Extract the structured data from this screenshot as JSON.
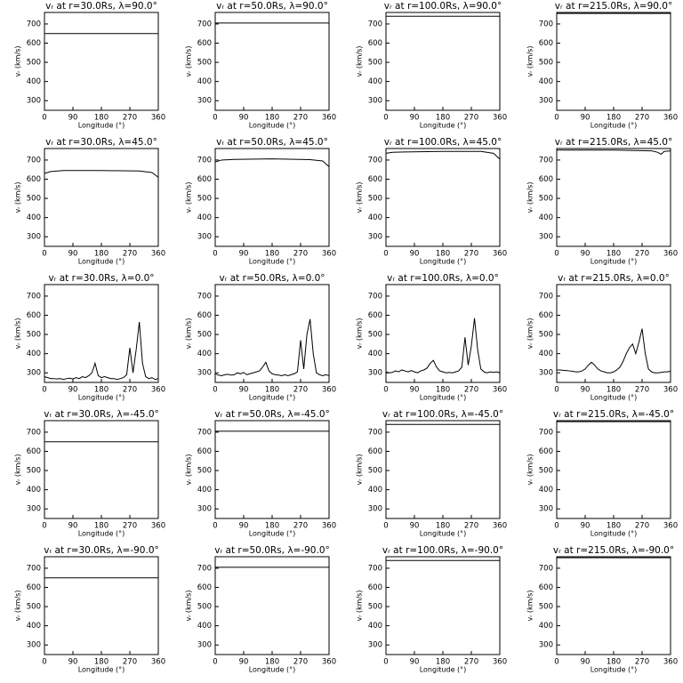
{
  "chart_data": [
    {
      "type": "line",
      "title": "vᵣ at r=30.0Rs, λ=90.0°",
      "xlabel": "Longitude (°)",
      "ylabel": "vᵣ (km/s)",
      "x": [
        0,
        360
      ],
      "series": [
        {
          "color": "#000000",
          "values": [
            650,
            650
          ]
        }
      ],
      "xlim": [
        0,
        360
      ],
      "ylim": [
        250,
        760
      ],
      "xticks": [
        0,
        90,
        180,
        270,
        360
      ],
      "yticks": [
        300,
        400,
        500,
        600,
        700
      ]
    },
    {
      "type": "line",
      "title": "vᵣ at r=50.0Rs, λ=90.0°",
      "xlabel": "Longitude (°)",
      "ylabel": "vᵣ (km/s)",
      "x": [
        0,
        360
      ],
      "series": [
        {
          "color": "#000000",
          "values": [
            705,
            705
          ]
        }
      ],
      "xlim": [
        0,
        360
      ],
      "ylim": [
        250,
        760
      ],
      "xticks": [
        0,
        90,
        180,
        270,
        360
      ],
      "yticks": [
        300,
        400,
        500,
        600,
        700
      ]
    },
    {
      "type": "line",
      "title": "vᵣ at r=100.0Rs, λ=90.0°",
      "xlabel": "Longitude (°)",
      "ylabel": "vᵣ (km/s)",
      "x": [
        0,
        360
      ],
      "series": [
        {
          "color": "#000000",
          "values": [
            740,
            740
          ]
        }
      ],
      "xlim": [
        0,
        360
      ],
      "ylim": [
        250,
        760
      ],
      "xticks": [
        0,
        90,
        180,
        270,
        360
      ],
      "yticks": [
        300,
        400,
        500,
        600,
        700
      ]
    },
    {
      "type": "line",
      "title": "vᵣ at r=215.0Rs, λ=90.0°",
      "xlabel": "Longitude (°)",
      "ylabel": "vᵣ (km/s)",
      "x": [
        0,
        360
      ],
      "series": [
        {
          "color": "#000000",
          "values": [
            755,
            755
          ]
        }
      ],
      "xlim": [
        0,
        360
      ],
      "ylim": [
        250,
        760
      ],
      "xticks": [
        0,
        90,
        180,
        270,
        360
      ],
      "yticks": [
        300,
        400,
        500,
        600,
        700
      ]
    },
    {
      "type": "line",
      "title": "vᵣ at r=30.0Rs, λ=45.0°",
      "xlabel": "Longitude (°)",
      "ylabel": "vᵣ (km/s)",
      "x": [
        0,
        20,
        60,
        180,
        300,
        340,
        360
      ],
      "series": [
        {
          "color": "#000000",
          "values": [
            630,
            640,
            645,
            645,
            643,
            635,
            610
          ]
        }
      ],
      "xlim": [
        0,
        360
      ],
      "ylim": [
        250,
        760
      ],
      "xticks": [
        0,
        90,
        180,
        270,
        360
      ],
      "yticks": [
        300,
        400,
        500,
        600,
        700
      ]
    },
    {
      "type": "line",
      "title": "vᵣ at r=50.0Rs, λ=45.0°",
      "xlabel": "Longitude (°)",
      "ylabel": "vᵣ (km/s)",
      "x": [
        0,
        20,
        60,
        180,
        300,
        340,
        360
      ],
      "series": [
        {
          "color": "#000000",
          "values": [
            690,
            700,
            703,
            706,
            702,
            695,
            665
          ]
        }
      ],
      "xlim": [
        0,
        360
      ],
      "ylim": [
        250,
        760
      ],
      "xticks": [
        0,
        90,
        180,
        270,
        360
      ],
      "yticks": [
        300,
        400,
        500,
        600,
        700
      ]
    },
    {
      "type": "line",
      "title": "vᵣ at r=100.0Rs, λ=45.0°",
      "xlabel": "Longitude (°)",
      "ylabel": "vᵣ (km/s)",
      "x": [
        0,
        20,
        60,
        180,
        300,
        340,
        360
      ],
      "series": [
        {
          "color": "#000000",
          "values": [
            735,
            740,
            742,
            745,
            745,
            735,
            705
          ]
        }
      ],
      "xlim": [
        0,
        360
      ],
      "ylim": [
        250,
        760
      ],
      "xticks": [
        0,
        90,
        180,
        270,
        360
      ],
      "yticks": [
        300,
        400,
        500,
        600,
        700
      ]
    },
    {
      "type": "line",
      "title": "vᵣ at r=215.0Rs, λ=45.0°",
      "xlabel": "Longitude (°)",
      "ylabel": "vᵣ (km/s)",
      "x": [
        0,
        180,
        300,
        320,
        330,
        340,
        360
      ],
      "series": [
        {
          "color": "#000000",
          "values": [
            752,
            752,
            748,
            740,
            730,
            745,
            748
          ]
        }
      ],
      "xlim": [
        0,
        360
      ],
      "ylim": [
        250,
        760
      ],
      "xticks": [
        0,
        90,
        180,
        270,
        360
      ],
      "yticks": [
        300,
        400,
        500,
        600,
        700
      ]
    },
    {
      "type": "line",
      "title": "vᵣ at r=30.0Rs, λ=0.0°",
      "xlabel": "Longitude (°)",
      "ylabel": "vᵣ (km/s)",
      "x": [
        0,
        10,
        20,
        30,
        40,
        50,
        60,
        70,
        80,
        90,
        100,
        110,
        120,
        130,
        140,
        150,
        160,
        170,
        180,
        190,
        200,
        210,
        220,
        230,
        240,
        250,
        260,
        270,
        280,
        290,
        300,
        310,
        320,
        330,
        340,
        350,
        360
      ],
      "series": [
        {
          "color": "#000000",
          "values": [
            280,
            275,
            270,
            270,
            268,
            270,
            265,
            270,
            272,
            268,
            275,
            270,
            280,
            275,
            285,
            300,
            350,
            285,
            275,
            280,
            275,
            270,
            270,
            265,
            270,
            275,
            290,
            430,
            300,
            420,
            565,
            350,
            280,
            270,
            275,
            265,
            270
          ]
        }
      ],
      "xlim": [
        0,
        360
      ],
      "ylim": [
        250,
        760
      ],
      "xticks": [
        0,
        90,
        180,
        270,
        360
      ],
      "yticks": [
        300,
        400,
        500,
        600,
        700
      ]
    },
    {
      "type": "line",
      "title": "vᵣ at r=50.0Rs, λ=0.0°",
      "xlabel": "Longitude (°)",
      "ylabel": "vᵣ (km/s)",
      "x": [
        0,
        10,
        20,
        30,
        40,
        50,
        60,
        70,
        80,
        90,
        100,
        110,
        120,
        130,
        140,
        150,
        160,
        170,
        180,
        190,
        200,
        210,
        220,
        230,
        240,
        250,
        260,
        270,
        280,
        290,
        300,
        310,
        320,
        330,
        340,
        350,
        360
      ],
      "series": [
        {
          "color": "#000000",
          "values": [
            295,
            288,
            285,
            290,
            292,
            288,
            290,
            300,
            295,
            302,
            290,
            295,
            300,
            305,
            310,
            330,
            355,
            310,
            295,
            290,
            288,
            285,
            290,
            285,
            290,
            295,
            305,
            470,
            320,
            500,
            580,
            400,
            300,
            290,
            285,
            290,
            285
          ]
        }
      ],
      "xlim": [
        0,
        360
      ],
      "ylim": [
        250,
        760
      ],
      "xticks": [
        0,
        90,
        180,
        270,
        360
      ],
      "yticks": [
        300,
        400,
        500,
        600,
        700
      ]
    },
    {
      "type": "line",
      "title": "vᵣ at r=100.0Rs, λ=0.0°",
      "xlabel": "Longitude (°)",
      "ylabel": "vᵣ (km/s)",
      "x": [
        0,
        10,
        20,
        30,
        40,
        50,
        60,
        70,
        80,
        90,
        100,
        110,
        120,
        130,
        140,
        150,
        160,
        170,
        180,
        190,
        200,
        210,
        220,
        230,
        240,
        250,
        260,
        270,
        280,
        290,
        300,
        310,
        320,
        330,
        340,
        350,
        360
      ],
      "series": [
        {
          "color": "#000000",
          "values": [
            305,
            300,
            302,
            310,
            305,
            315,
            310,
            305,
            312,
            305,
            300,
            310,
            315,
            325,
            350,
            365,
            330,
            310,
            305,
            300,
            302,
            300,
            305,
            310,
            330,
            485,
            340,
            440,
            585,
            420,
            320,
            305,
            300,
            305,
            302,
            305,
            300
          ]
        }
      ],
      "xlim": [
        0,
        360
      ],
      "ylim": [
        250,
        760
      ],
      "xticks": [
        0,
        90,
        180,
        270,
        360
      ],
      "yticks": [
        300,
        400,
        500,
        600,
        700
      ]
    },
    {
      "type": "line",
      "title": "vᵣ at r=215.0Rs, λ=0.0°",
      "xlabel": "Longitude (°)",
      "ylabel": "vᵣ (km/s)",
      "x": [
        0,
        10,
        20,
        30,
        40,
        50,
        60,
        70,
        80,
        90,
        100,
        110,
        120,
        130,
        140,
        150,
        160,
        170,
        180,
        190,
        200,
        210,
        220,
        230,
        240,
        250,
        260,
        270,
        280,
        290,
        300,
        310,
        320,
        330,
        340,
        350,
        360
      ],
      "series": [
        {
          "color": "#000000",
          "values": [
            315,
            315,
            313,
            312,
            310,
            308,
            305,
            305,
            310,
            320,
            340,
            355,
            340,
            320,
            310,
            305,
            300,
            300,
            305,
            315,
            330,
            360,
            400,
            430,
            450,
            400,
            460,
            530,
            400,
            320,
            305,
            300,
            300,
            302,
            305,
            305,
            308
          ]
        }
      ],
      "xlim": [
        0,
        360
      ],
      "ylim": [
        250,
        760
      ],
      "xticks": [
        0,
        90,
        180,
        270,
        360
      ],
      "yticks": [
        300,
        400,
        500,
        600,
        700
      ]
    },
    {
      "type": "line",
      "title": "vᵣ at r=30.0Rs, λ=-45.0°",
      "xlabel": "Longitude (°)",
      "ylabel": "vᵣ (km/s)",
      "x": [
        0,
        360
      ],
      "series": [
        {
          "color": "#000000",
          "values": [
            650,
            650
          ]
        }
      ],
      "xlim": [
        0,
        360
      ],
      "ylim": [
        250,
        760
      ],
      "xticks": [
        0,
        90,
        180,
        270,
        360
      ],
      "yticks": [
        300,
        400,
        500,
        600,
        700
      ]
    },
    {
      "type": "line",
      "title": "vᵣ at r=50.0Rs, λ=-45.0°",
      "xlabel": "Longitude (°)",
      "ylabel": "vᵣ (km/s)",
      "x": [
        0,
        360
      ],
      "series": [
        {
          "color": "#000000",
          "values": [
            705,
            705
          ]
        }
      ],
      "xlim": [
        0,
        360
      ],
      "ylim": [
        250,
        760
      ],
      "xticks": [
        0,
        90,
        180,
        270,
        360
      ],
      "yticks": [
        300,
        400,
        500,
        600,
        700
      ]
    },
    {
      "type": "line",
      "title": "vᵣ at r=100.0Rs, λ=-45.0°",
      "xlabel": "Longitude (°)",
      "ylabel": "vᵣ (km/s)",
      "x": [
        0,
        360
      ],
      "series": [
        {
          "color": "#000000",
          "values": [
            740,
            740
          ]
        }
      ],
      "xlim": [
        0,
        360
      ],
      "ylim": [
        250,
        760
      ],
      "xticks": [
        0,
        90,
        180,
        270,
        360
      ],
      "yticks": [
        300,
        400,
        500,
        600,
        700
      ]
    },
    {
      "type": "line",
      "title": "vᵣ at r=215.0Rs, λ=-45.0°",
      "xlabel": "Longitude (°)",
      "ylabel": "vᵣ (km/s)",
      "x": [
        0,
        360
      ],
      "series": [
        {
          "color": "#000000",
          "values": [
            755,
            755
          ]
        }
      ],
      "xlim": [
        0,
        360
      ],
      "ylim": [
        250,
        760
      ],
      "xticks": [
        0,
        90,
        180,
        270,
        360
      ],
      "yticks": [
        300,
        400,
        500,
        600,
        700
      ]
    },
    {
      "type": "line",
      "title": "vᵣ at r=30.0Rs, λ=-90.0°",
      "xlabel": "Longitude (°)",
      "ylabel": "vᵣ (km/s)",
      "x": [
        0,
        360
      ],
      "series": [
        {
          "color": "#000000",
          "values": [
            650,
            650
          ]
        }
      ],
      "xlim": [
        0,
        360
      ],
      "ylim": [
        250,
        760
      ],
      "xticks": [
        0,
        90,
        180,
        270,
        360
      ],
      "yticks": [
        300,
        400,
        500,
        600,
        700
      ]
    },
    {
      "type": "line",
      "title": "vᵣ at r=50.0Rs, λ=-90.0°",
      "xlabel": "Longitude (°)",
      "ylabel": "vᵣ (km/s)",
      "x": [
        0,
        360
      ],
      "series": [
        {
          "color": "#000000",
          "values": [
            705,
            705
          ]
        }
      ],
      "xlim": [
        0,
        360
      ],
      "ylim": [
        250,
        760
      ],
      "xticks": [
        0,
        90,
        180,
        270,
        360
      ],
      "yticks": [
        300,
        400,
        500,
        600,
        700
      ]
    },
    {
      "type": "line",
      "title": "vᵣ at r=100.0Rs, λ=-90.0°",
      "xlabel": "Longitude (°)",
      "ylabel": "vᵣ (km/s)",
      "x": [
        0,
        360
      ],
      "series": [
        {
          "color": "#000000",
          "values": [
            740,
            740
          ]
        }
      ],
      "xlim": [
        0,
        360
      ],
      "ylim": [
        250,
        760
      ],
      "xticks": [
        0,
        90,
        180,
        270,
        360
      ],
      "yticks": [
        300,
        400,
        500,
        600,
        700
      ]
    },
    {
      "type": "line",
      "title": "vᵣ at r=215.0Rs, λ=-90.0°",
      "xlabel": "Longitude (°)",
      "ylabel": "vᵣ (km/s)",
      "x": [
        0,
        360
      ],
      "series": [
        {
          "color": "#000000",
          "values": [
            755,
            755
          ]
        }
      ],
      "xlim": [
        0,
        360
      ],
      "ylim": [
        250,
        760
      ],
      "xticks": [
        0,
        90,
        180,
        270,
        360
      ],
      "yticks": [
        300,
        400,
        500,
        600,
        700
      ]
    }
  ]
}
